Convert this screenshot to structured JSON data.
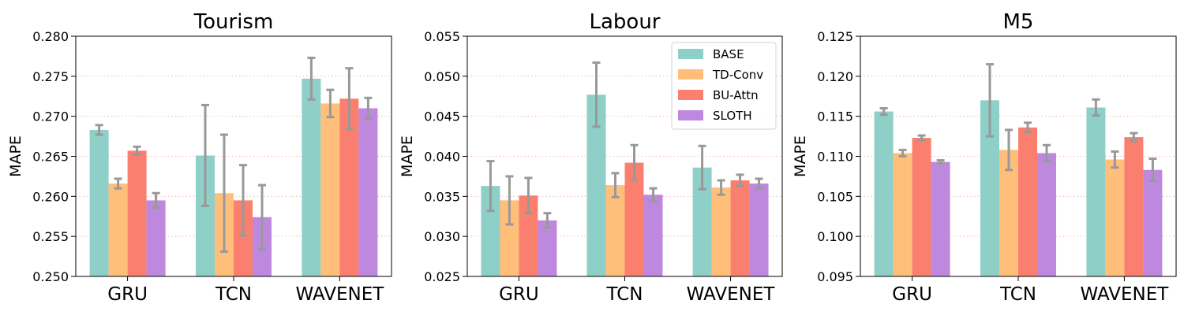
{
  "colors": {
    "BASE": "#8ecfc8",
    "TD-Conv": "#ffbe7a",
    "BU-Attn": "#fa7f6f",
    "SLOTH": "#be88de",
    "error_bar": "#999999",
    "grid": "#f3b6c2"
  },
  "legend": {
    "entries": [
      "BASE",
      "TD-Conv",
      "BU-Attn",
      "SLOTH"
    ],
    "placement": "top-right of Labour panel"
  },
  "chart_data": [
    {
      "type": "bar",
      "title": "Tourism",
      "xlabel": "",
      "ylabel": "MAPE",
      "ylim": [
        0.25,
        0.28
      ],
      "yticks": [
        "0.250",
        "0.255",
        "0.260",
        "0.265",
        "0.270",
        "0.275",
        "0.280"
      ],
      "categories": [
        "GRU",
        "TCN",
        "WAVENET"
      ],
      "grid": "horizontal dotted",
      "series": [
        {
          "name": "BASE",
          "values": [
            0.2683,
            0.2651,
            0.2747
          ],
          "errors": [
            0.0006,
            0.0063,
            0.0026
          ]
        },
        {
          "name": "TD-Conv",
          "values": [
            0.2616,
            0.2604,
            0.2716
          ],
          "errors": [
            0.0006,
            0.0073,
            0.0017
          ]
        },
        {
          "name": "BU-Attn",
          "values": [
            0.2657,
            0.2595,
            0.2722
          ],
          "errors": [
            0.0005,
            0.0044,
            0.0038
          ]
        },
        {
          "name": "SLOTH",
          "values": [
            0.2595,
            0.2574,
            0.271
          ],
          "errors": [
            0.0009,
            0.004,
            0.0013
          ]
        }
      ]
    },
    {
      "type": "bar",
      "title": "Labour",
      "xlabel": "",
      "ylabel": "MAPE",
      "ylim": [
        0.025,
        0.055
      ],
      "yticks": [
        "0.025",
        "0.030",
        "0.035",
        "0.040",
        "0.045",
        "0.050",
        "0.055"
      ],
      "categories": [
        "GRU",
        "TCN",
        "WAVENET"
      ],
      "grid": "horizontal dotted",
      "series": [
        {
          "name": "BASE",
          "values": [
            0.0363,
            0.0477,
            0.0386
          ],
          "errors": [
            0.0031,
            0.004,
            0.0027
          ]
        },
        {
          "name": "TD-Conv",
          "values": [
            0.0345,
            0.0364,
            0.0361
          ],
          "errors": [
            0.003,
            0.0015,
            0.0009
          ]
        },
        {
          "name": "BU-Attn",
          "values": [
            0.0351,
            0.0392,
            0.037
          ],
          "errors": [
            0.0022,
            0.0022,
            0.0007
          ]
        },
        {
          "name": "SLOTH",
          "values": [
            0.032,
            0.0352,
            0.0366
          ],
          "errors": [
            0.0009,
            0.0008,
            0.0006
          ]
        }
      ]
    },
    {
      "type": "bar",
      "title": "M5",
      "xlabel": "",
      "ylabel": "MAPE",
      "ylim": [
        0.095,
        0.125
      ],
      "yticks": [
        "0.095",
        "0.100",
        "0.105",
        "0.110",
        "0.115",
        "0.120",
        "0.125"
      ],
      "categories": [
        "GRU",
        "TCN",
        "WAVENET"
      ],
      "grid": "horizontal dotted",
      "series": [
        {
          "name": "BASE",
          "values": [
            0.1156,
            0.117,
            0.1161
          ],
          "errors": [
            0.0004,
            0.0045,
            0.001
          ]
        },
        {
          "name": "TD-Conv",
          "values": [
            0.1104,
            0.1108,
            0.1096
          ],
          "errors": [
            0.0004,
            0.0025,
            0.001
          ]
        },
        {
          "name": "BU-Attn",
          "values": [
            0.1123,
            0.1136,
            0.1124
          ],
          "errors": [
            0.0003,
            0.0006,
            0.0005
          ]
        },
        {
          "name": "SLOTH",
          "values": [
            0.1093,
            0.1104,
            0.1083
          ],
          "errors": [
            0.0002,
            0.001,
            0.0014
          ]
        }
      ]
    }
  ]
}
